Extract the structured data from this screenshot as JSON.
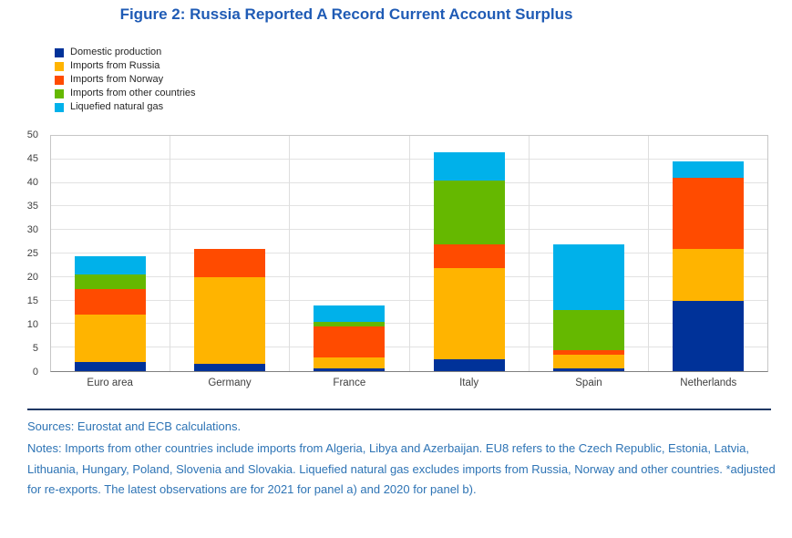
{
  "title": "Figure 2: Russia Reported A Record Current Account Surplus",
  "chart_data": {
    "type": "bar",
    "stacked": true,
    "title": "Figure 2: Russia Reported A Record Current Account Surplus",
    "categories": [
      "Euro area",
      "Germany",
      "France",
      "Italy",
      "Spain",
      "Netherlands"
    ],
    "series": [
      {
        "name": "Domestic production",
        "color": "#003299",
        "values": [
          2,
          1.5,
          0.5,
          2.5,
          0.5,
          15
        ]
      },
      {
        "name": "Imports from Russia",
        "color": "#ffb400",
        "values": [
          10,
          18.5,
          2.5,
          19.5,
          3,
          11
        ]
      },
      {
        "name": "Imports from Norway",
        "color": "#ff4b00",
        "values": [
          5.5,
          6,
          6.5,
          5,
          1,
          15
        ]
      },
      {
        "name": "Imports from other countries",
        "color": "#65b800",
        "values": [
          3,
          0,
          1,
          13.5,
          8.5,
          0
        ]
      },
      {
        "name": "Liquefied natural gas",
        "color": "#00b1ea",
        "values": [
          4,
          0,
          3.5,
          6,
          14,
          3.5
        ]
      }
    ],
    "ylim": [
      0,
      50
    ],
    "ytick_step": 5,
    "xlabel": "",
    "ylabel": "",
    "grid": true,
    "legend_position": "top-left"
  },
  "footer": {
    "sources": "Sources: Eurostat and ECB calculations.",
    "notes": "Notes: Imports from other countries include imports from Algeria, Libya and Azerbaijan. EU8 refers to the Czech Republic, Estonia, Latvia, Lithuania, Hungary, Poland, Slovenia and Slovakia. Liquefied natural gas excludes imports from Russia, Norway and other countries. *adjusted for re-exports. The latest observations are for 2021 for panel a) and 2020 for panel b)."
  },
  "colors": {
    "title_text": "#1f5bb5",
    "notes_text": "#2e74b5",
    "divider": "#1f3864"
  }
}
